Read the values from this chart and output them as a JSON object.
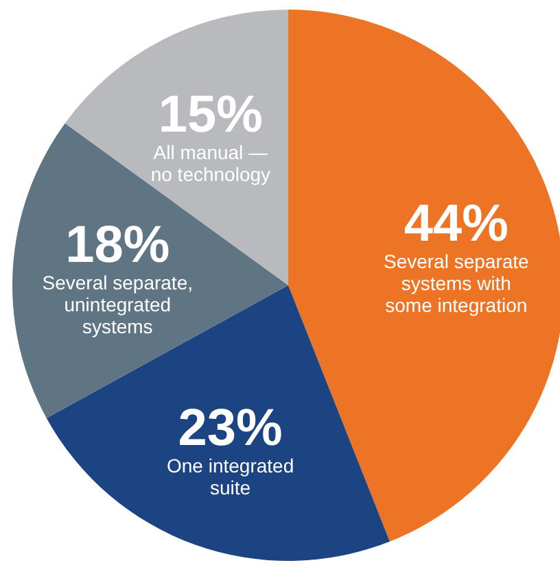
{
  "chart_data": {
    "type": "pie",
    "categories": [
      "Several separate\nsystems with\nsome integration",
      "One integrated\nsuite",
      "Several separate,\nunintegrated\nsystems",
      "All manual —\nno technology"
    ],
    "values": [
      44,
      23,
      18,
      15
    ],
    "colors": [
      "#ec7424",
      "#1c4483",
      "#5f7584",
      "#b9babe"
    ],
    "value_labels": [
      "44%",
      "23%",
      "18%",
      "15%"
    ]
  }
}
